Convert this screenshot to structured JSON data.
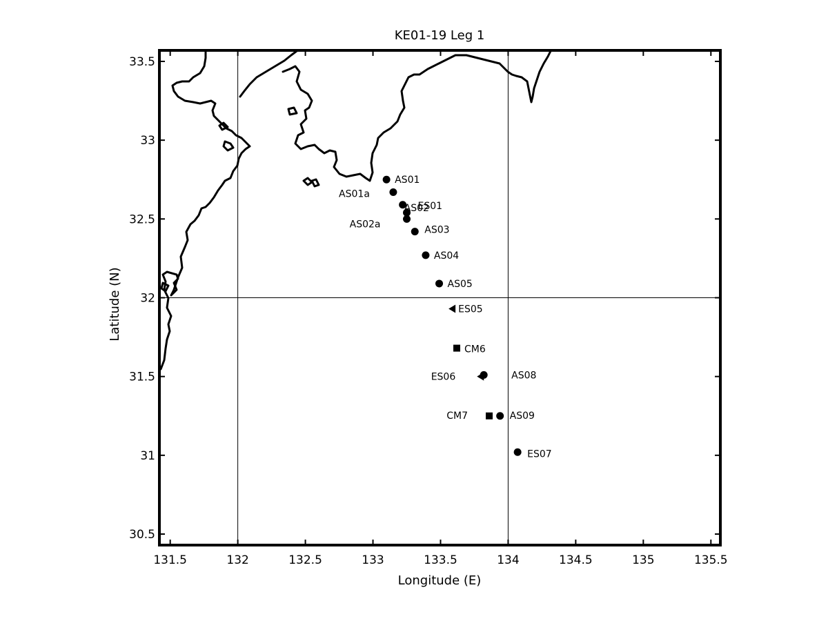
{
  "chart_data": {
    "type": "scatter",
    "title": "KE01-19 Leg 1",
    "xlabel": "Longitude (E)",
    "ylabel": "Latitude (N)",
    "xlim": [
      131.42,
      135.57
    ],
    "ylim": [
      30.43,
      33.57
    ],
    "x_ticks": [
      "131.5",
      "132",
      "132.5",
      "133",
      "133.5",
      "134",
      "134.5",
      "135",
      "135.5"
    ],
    "y_ticks": [
      "30.5",
      "31",
      "31.5",
      "32",
      "32.5",
      "33",
      "33.5"
    ],
    "grid": {
      "x": [
        132,
        134
      ],
      "y": [
        32
      ]
    },
    "stations": [
      {
        "name": "AS01",
        "lon": 133.1,
        "lat": 32.75,
        "marker": "circle"
      },
      {
        "name": "AS01a",
        "lon": 133.15,
        "lat": 32.67,
        "marker": "circle"
      },
      {
        "name": "AS02",
        "lon": 133.22,
        "lat": 32.59,
        "marker": "circle"
      },
      {
        "name": "ES01",
        "lon": 133.25,
        "lat": 32.54,
        "marker": "circle"
      },
      {
        "name": "AS02a",
        "lon": 133.25,
        "lat": 32.5,
        "marker": "circle"
      },
      {
        "name": "AS03",
        "lon": 133.31,
        "lat": 32.42,
        "marker": "circle"
      },
      {
        "name": "AS04",
        "lon": 133.39,
        "lat": 32.27,
        "marker": "circle"
      },
      {
        "name": "AS05",
        "lon": 133.49,
        "lat": 32.09,
        "marker": "circle"
      },
      {
        "name": "ES05",
        "lon": 133.59,
        "lat": 31.93,
        "marker": "triangle"
      },
      {
        "name": "CM6",
        "lon": 133.62,
        "lat": 31.68,
        "marker": "square"
      },
      {
        "name": "ES06",
        "lon": 133.8,
        "lat": 31.5,
        "marker": "triangle"
      },
      {
        "name": "AS08",
        "lon": 133.82,
        "lat": 31.51,
        "marker": "circle"
      },
      {
        "name": "CM7",
        "lon": 133.86,
        "lat": 31.25,
        "marker": "square"
      },
      {
        "name": "AS09",
        "lon": 133.94,
        "lat": 31.25,
        "marker": "circle"
      },
      {
        "name": "ES07",
        "lon": 134.07,
        "lat": 31.02,
        "marker": "circle"
      }
    ]
  }
}
